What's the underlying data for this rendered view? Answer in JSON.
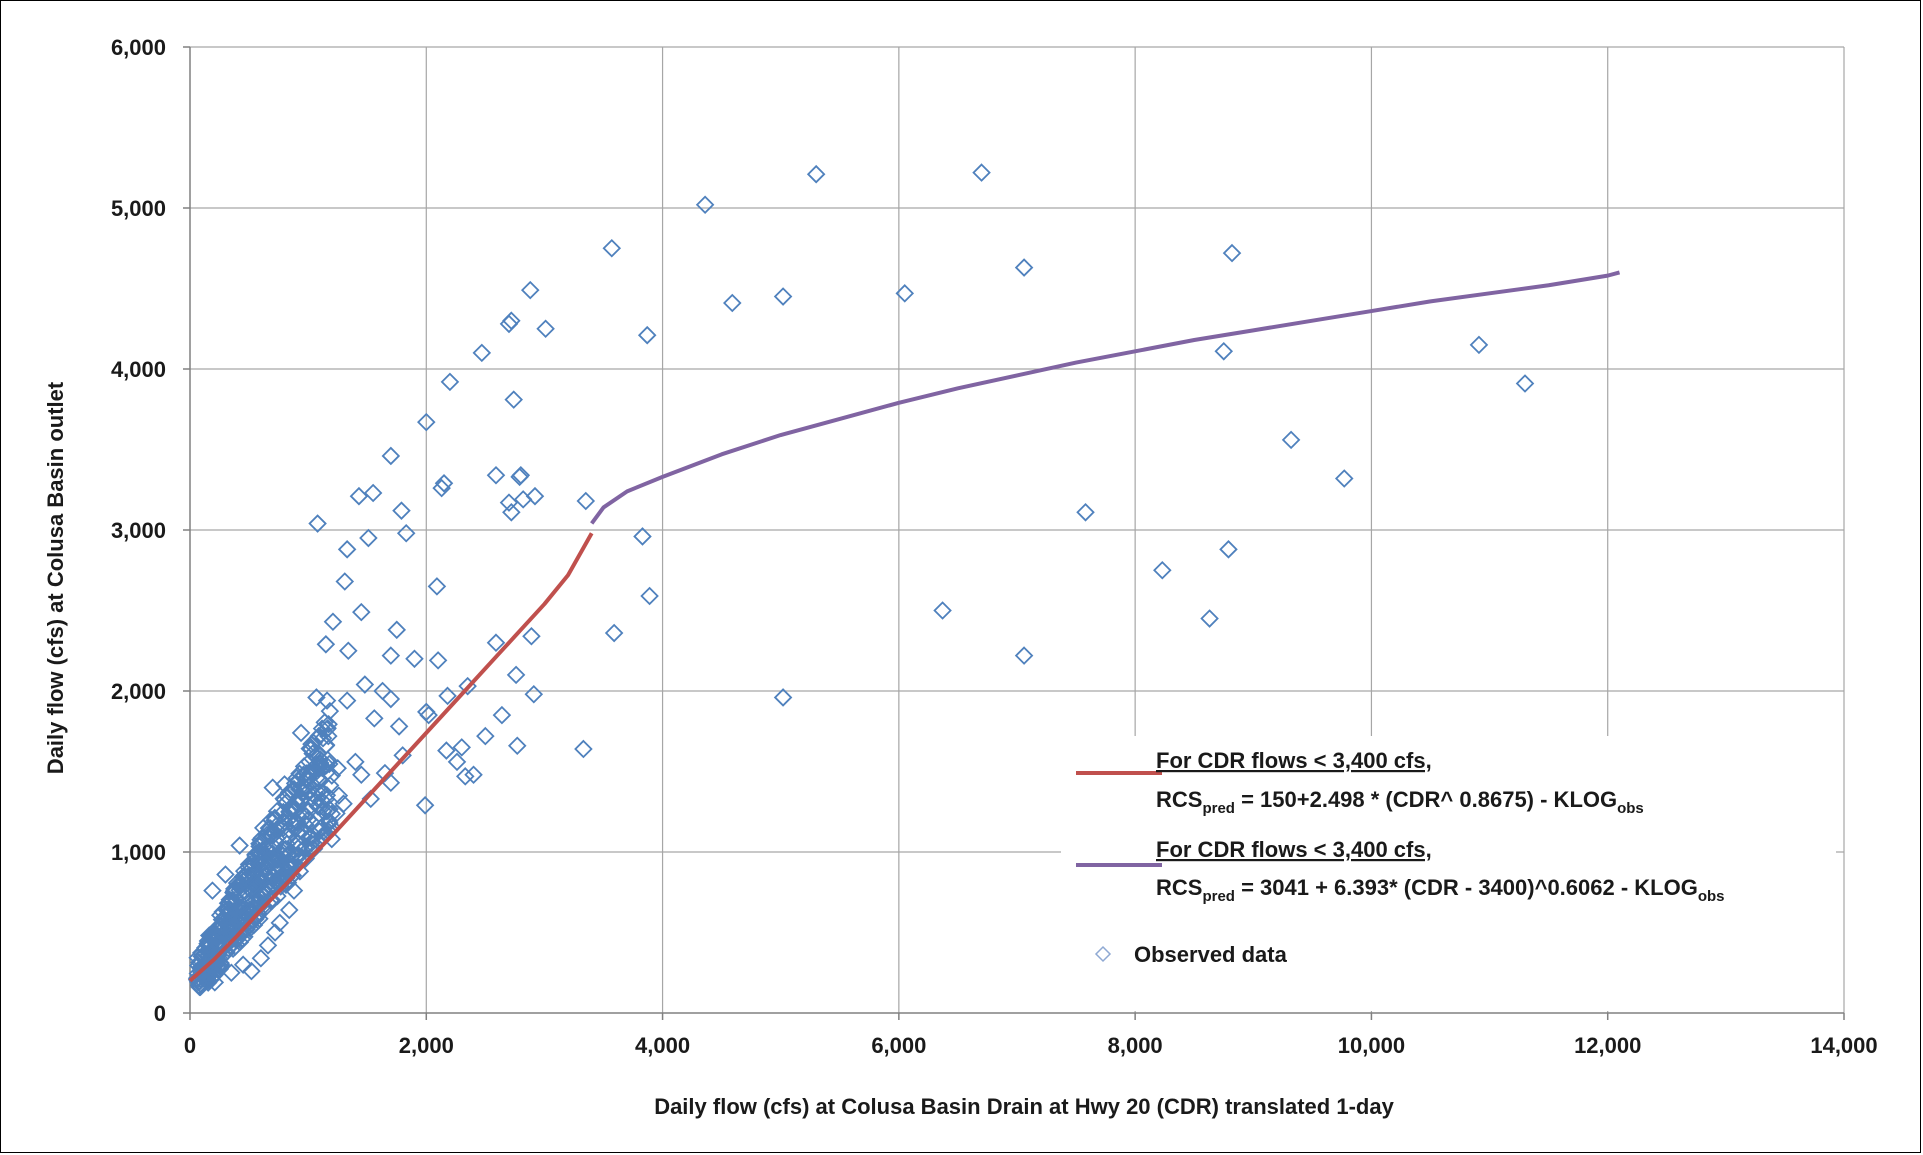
{
  "chart_data": {
    "type": "scatter",
    "xlabel": "Daily flow (cfs) at Colusa Basin Drain at Hwy 20 (CDR) translated 1-day",
    "ylabel": "Daily flow (cfs) at Colusa Basin outlet",
    "xlim": [
      0,
      14000
    ],
    "ylim": [
      0,
      6000
    ],
    "x_ticks": [
      0,
      2000,
      4000,
      6000,
      8000,
      10000,
      12000,
      14000
    ],
    "x_tick_labels": [
      "0",
      "2,000",
      "4,000",
      "6,000",
      "8,000",
      "10,000",
      "12,000",
      "14,000"
    ],
    "y_ticks": [
      0,
      1000,
      2000,
      3000,
      4000,
      5000,
      6000
    ],
    "y_tick_labels": [
      "0",
      "1,000",
      "2,000",
      "3,000",
      "4,000",
      "5,000",
      "6,000"
    ],
    "grid": true,
    "legend_position": "lower-right",
    "colors": {
      "observed": "#4f81bd",
      "low_flow_curve": "#c0504d",
      "high_flow_curve": "#8064a2",
      "grid": "#a6a6a6",
      "axis": "#808080"
    },
    "series": [
      {
        "name": "Observed data",
        "kind": "scatter",
        "marker": "diamond",
        "cluster_note": "Dense cluster of observed points between roughly 100-1,300 cfs CDR and 200-2,000 cfs outlet",
        "points": [
          [
            4360,
            5020
          ],
          [
            5300,
            5210
          ],
          [
            6700,
            5220
          ],
          [
            3570,
            4750
          ],
          [
            8820,
            4720
          ],
          [
            7060,
            4630
          ],
          [
            6050,
            4470
          ],
          [
            5020,
            4450
          ],
          [
            4590,
            4410
          ],
          [
            2880,
            4490
          ],
          [
            2720,
            4300
          ],
          [
            2700,
            4280
          ],
          [
            3010,
            4250
          ],
          [
            3870,
            4210
          ],
          [
            10910,
            4150
          ],
          [
            8750,
            4110
          ],
          [
            2470,
            4100
          ],
          [
            11300,
            3910
          ],
          [
            2200,
            3920
          ],
          [
            2740,
            3810
          ],
          [
            2000,
            3670
          ],
          [
            9320,
            3560
          ],
          [
            1700,
            3460
          ],
          [
            2590,
            3340
          ],
          [
            2800,
            3340
          ],
          [
            2790,
            3330
          ],
          [
            2150,
            3290
          ],
          [
            2130,
            3260
          ],
          [
            9770,
            3320
          ],
          [
            1430,
            3210
          ],
          [
            1550,
            3230
          ],
          [
            2920,
            3210
          ],
          [
            3350,
            3180
          ],
          [
            2820,
            3190
          ],
          [
            2700,
            3170
          ],
          [
            1790,
            3120
          ],
          [
            2720,
            3110
          ],
          [
            7580,
            3110
          ],
          [
            1080,
            3040
          ],
          [
            1830,
            2980
          ],
          [
            1510,
            2950
          ],
          [
            3830,
            2960
          ],
          [
            1330,
            2880
          ],
          [
            8790,
            2880
          ],
          [
            8230,
            2750
          ],
          [
            1310,
            2680
          ],
          [
            2090,
            2650
          ],
          [
            3890,
            2590
          ],
          [
            6370,
            2500
          ],
          [
            1450,
            2490
          ],
          [
            8630,
            2450
          ],
          [
            1210,
            2430
          ],
          [
            3590,
            2360
          ],
          [
            1750,
            2380
          ],
          [
            2890,
            2340
          ],
          [
            1150,
            2290
          ],
          [
            2590,
            2300
          ],
          [
            1340,
            2250
          ],
          [
            7060,
            2220
          ],
          [
            1700,
            2220
          ],
          [
            1900,
            2200
          ],
          [
            2100,
            2190
          ],
          [
            2760,
            2100
          ],
          [
            1480,
            2040
          ],
          [
            2350,
            2030
          ],
          [
            1630,
            2000
          ],
          [
            2180,
            1970
          ],
          [
            2910,
            1980
          ],
          [
            5020,
            1960
          ],
          [
            1700,
            1950
          ],
          [
            1070,
            1960
          ],
          [
            1160,
            1940
          ],
          [
            1330,
            1940
          ],
          [
            2640,
            1850
          ],
          [
            2020,
            1850
          ],
          [
            2000,
            1870
          ],
          [
            1560,
            1830
          ],
          [
            1770,
            1780
          ],
          [
            2500,
            1720
          ],
          [
            940,
            1740
          ],
          [
            1090,
            1720
          ],
          [
            2300,
            1650
          ],
          [
            2770,
            1660
          ],
          [
            3330,
            1640
          ],
          [
            2170,
            1630
          ],
          [
            1800,
            1600
          ],
          [
            2260,
            1560
          ],
          [
            2400,
            1480
          ],
          [
            2330,
            1470
          ],
          [
            1990,
            1290
          ],
          [
            1400,
            1560
          ],
          [
            1250,
            1520
          ],
          [
            1450,
            1480
          ],
          [
            1650,
            1490
          ],
          [
            1700,
            1430
          ],
          [
            1530,
            1330
          ],
          [
            1260,
            1350
          ],
          [
            1100,
            1280
          ],
          [
            1200,
            1080
          ],
          [
            1000,
            1200
          ],
          [
            900,
            1150
          ],
          [
            820,
            1050
          ],
          [
            780,
            980
          ],
          [
            700,
            1100
          ],
          [
            650,
            900
          ],
          [
            600,
            820
          ],
          [
            560,
            700
          ],
          [
            520,
            760
          ],
          [
            480,
            640
          ],
          [
            440,
            600
          ],
          [
            400,
            560
          ],
          [
            360,
            520
          ],
          [
            320,
            470
          ],
          [
            280,
            400
          ],
          [
            240,
            360
          ],
          [
            200,
            320
          ],
          [
            170,
            300
          ],
          [
            150,
            260
          ],
          [
            120,
            240
          ],
          [
            100,
            280
          ],
          [
            420,
            1040
          ],
          [
            300,
            860
          ],
          [
            190,
            760
          ],
          [
            220,
            520
          ],
          [
            260,
            310
          ],
          [
            210,
            190
          ],
          [
            350,
            250
          ],
          [
            450,
            300
          ],
          [
            520,
            260
          ],
          [
            600,
            340
          ],
          [
            660,
            420
          ],
          [
            720,
            500
          ],
          [
            760,
            560
          ],
          [
            840,
            640
          ],
          [
            880,
            760
          ],
          [
            930,
            880
          ],
          [
            980,
            960
          ],
          [
            1050,
            1020
          ],
          [
            1120,
            1100
          ],
          [
            1180,
            1180
          ],
          [
            1240,
            1240
          ],
          [
            1300,
            1300
          ],
          [
            700,
            1400
          ],
          [
            800,
            1420
          ],
          [
            860,
            1380
          ],
          [
            960,
            1480
          ],
          [
            1010,
            1560
          ],
          [
            1080,
            1610
          ],
          [
            1150,
            1660
          ],
          [
            620,
            1150
          ],
          [
            580,
            1000
          ],
          [
            540,
            920
          ],
          [
            500,
            880
          ],
          [
            460,
            820
          ],
          [
            380,
            760
          ],
          [
            340,
            700
          ],
          [
            310,
            640
          ],
          [
            270,
            580
          ],
          [
            250,
            520
          ],
          [
            230,
            460
          ]
        ]
      },
      {
        "name": "For CDR flows < 3,400 cfs,",
        "formula": "RCSpred = 150+2.498 * (CDR^ 0.8675) - KLOGobs",
        "kind": "line",
        "x": [
          0,
          200,
          400,
          600,
          800,
          1000,
          1200,
          1400,
          1600,
          1800,
          2000,
          2200,
          2400,
          2600,
          2800,
          3000,
          3200,
          3400
        ],
        "y": [
          200,
          330,
          480,
          640,
          790,
          950,
          1100,
          1260,
          1420,
          1580,
          1740,
          1900,
          2060,
          2220,
          2380,
          2540,
          2720,
          2980
        ]
      },
      {
        "name": "For CDR flows < 3,400 cfs,",
        "formula": "RCSpred = 3041 + 6.393* (CDR - 3400)^0.6062 - KLOGobs",
        "kind": "line",
        "x": [
          3400,
          3500,
          3700,
          4000,
          4500,
          5000,
          5500,
          6000,
          6500,
          7000,
          7500,
          8000,
          8500,
          9000,
          9500,
          10000,
          10500,
          11000,
          11500,
          12000,
          12100
        ],
        "y": [
          3041,
          3140,
          3240,
          3330,
          3470,
          3590,
          3690,
          3790,
          3880,
          3960,
          4040,
          4110,
          4180,
          4240,
          4300,
          4360,
          4420,
          4470,
          4520,
          4580,
          4600
        ]
      }
    ],
    "legend": {
      "low_title": "For CDR flows < 3,400 cfs,",
      "low_eq_a": "RCS",
      "low_eq_sub": "pred",
      "low_eq_b": " = 150+2.498 * (CDR^ 0.8675) - KLOG",
      "low_eq_sub2": "obs",
      "high_title": "For CDR flows < 3,400 cfs,",
      "high_eq_a": "RCS",
      "high_eq_sub": "pred",
      "high_eq_b": " = 3041 + 6.393* (CDR - 3400)^0.6062 - KLOG",
      "high_eq_sub2": "obs",
      "observed_label": "Observed data"
    }
  }
}
